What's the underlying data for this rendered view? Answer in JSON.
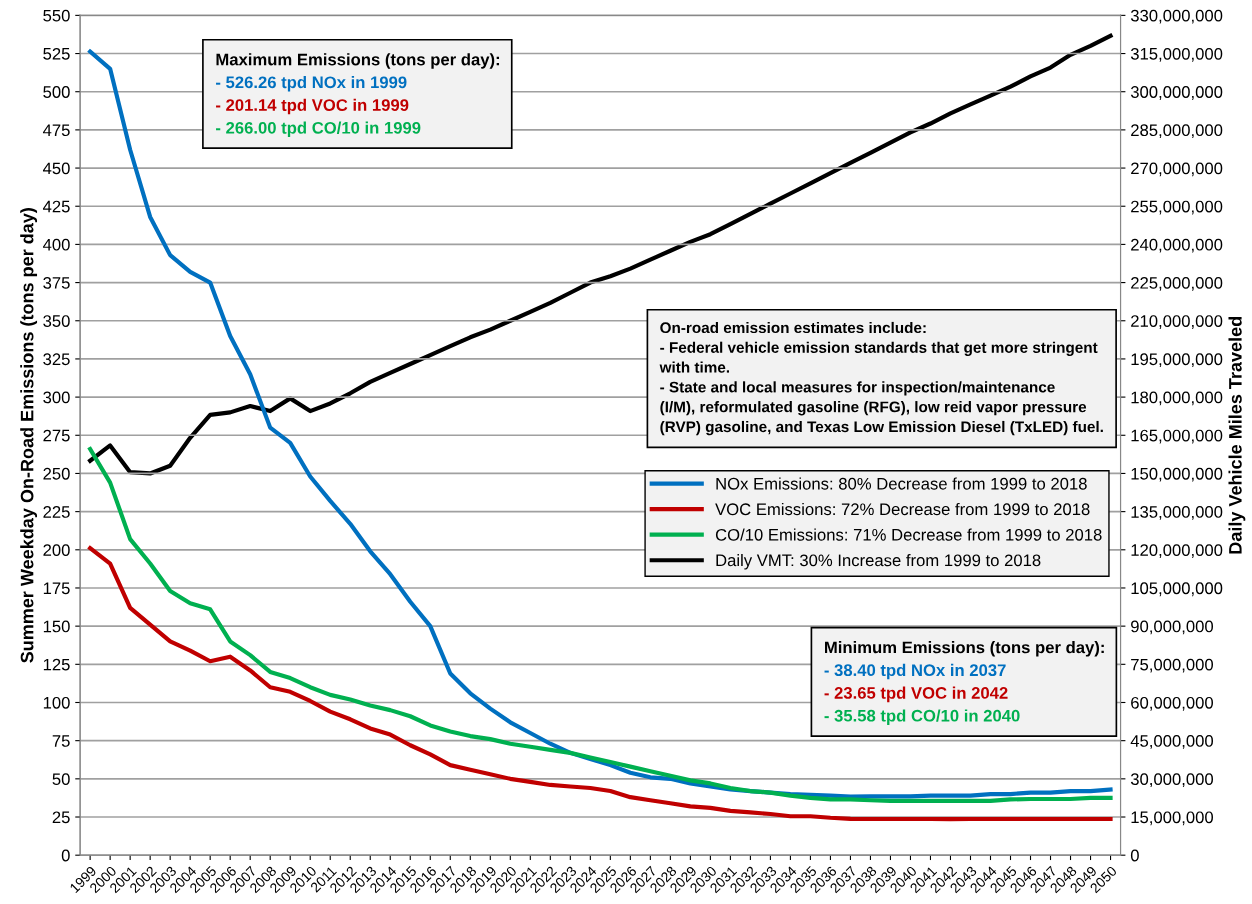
{
  "chart_data": {
    "type": "line",
    "categories": [
      "1999",
      "2000",
      "2001",
      "2002",
      "2003",
      "2004",
      "2005",
      "2006",
      "2007",
      "2008",
      "2009",
      "2010",
      "2011",
      "2012",
      "2013",
      "2014",
      "2015",
      "2016",
      "2017",
      "2018",
      "2019",
      "2020",
      "2021",
      "2022",
      "2023",
      "2024",
      "2025",
      "2026",
      "2027",
      "2028",
      "2029",
      "2030",
      "2031",
      "2032",
      "2033",
      "2034",
      "2035",
      "2036",
      "2037",
      "2038",
      "2039",
      "2040",
      "2041",
      "2042",
      "2043",
      "2044",
      "2045",
      "2046",
      "2047",
      "2048",
      "2049",
      "2050"
    ],
    "ylabel": "Summer Weekday On-Road Emissions (tons per day)",
    "y2label": "Daily Vehicle Miles Traveled",
    "series": [
      {
        "name": "NOx Emissions: 80% Decrease from 1999 to 2018",
        "color": "#0070c0",
        "values": [
          526.26,
          515,
          462,
          418,
          393,
          382,
          375,
          340,
          315,
          280,
          270,
          248,
          232,
          217,
          199,
          184,
          166,
          150,
          119,
          106,
          96,
          87,
          80,
          73,
          67,
          63,
          59,
          54,
          51,
          50,
          47,
          45,
          43,
          42,
          41,
          40,
          39.5,
          39,
          38.4,
          38.5,
          38.5,
          38.5,
          39,
          39,
          39,
          40,
          40,
          41,
          41,
          42,
          42,
          43
        ]
      },
      {
        "name": "VOC Emissions: 72% Decrease from 1999 to 2018",
        "color": "#c00000",
        "values": [
          201.14,
          191,
          162,
          151,
          140,
          134,
          127,
          130,
          121,
          110,
          107,
          101,
          94,
          89,
          83,
          79,
          72,
          66,
          59,
          56,
          53,
          50,
          48,
          46,
          45,
          44,
          42,
          38,
          36,
          34,
          32,
          31,
          29,
          28,
          27,
          25.5,
          25.5,
          24.5,
          23.8,
          23.7,
          23.7,
          23.7,
          23.7,
          23.65,
          23.7,
          23.7,
          23.7,
          23.7,
          23.7,
          23.7,
          23.7,
          23.7
        ]
      },
      {
        "name": "CO/10 Emissions: 71% Decrease from 1999 to 2018",
        "color": "#00b050",
        "values": [
          266.0,
          244,
          207,
          191,
          173,
          165,
          161,
          140,
          131,
          120,
          116,
          110,
          105,
          102,
          98,
          95,
          91,
          85,
          81,
          78,
          76,
          73,
          71,
          69,
          67,
          64,
          61,
          58,
          55,
          52,
          49,
          47,
          44,
          42,
          41,
          39,
          37.5,
          36.5,
          36.5,
          36,
          35.6,
          35.58,
          35.6,
          35.6,
          35.6,
          35.6,
          36.5,
          36.8,
          36.8,
          36.8,
          37.5,
          37.5
        ]
      },
      {
        "name": "Daily VMT: 30% Increase from 1999 to 2018",
        "color": "#000000",
        "axis": "y2",
        "values": [
          155000000,
          161000000,
          150500000,
          150000000,
          153000000,
          164000000,
          173000000,
          174000000,
          176500000,
          174500000,
          179500000,
          174500000,
          177500000,
          181500000,
          186000000,
          189500000,
          193000000,
          196500000,
          200000000,
          203500000,
          206500000,
          210000000,
          213500000,
          217000000,
          221000000,
          225000000,
          227500000,
          230500000,
          234000000,
          237500000,
          241000000,
          244000000,
          248000000,
          252000000,
          256000000,
          260000000,
          264000000,
          268000000,
          272000000,
          276000000,
          280000000,
          284000000,
          287500000,
          291500000,
          295000000,
          298500000,
          302000000,
          306000000,
          309500000,
          314500000,
          318000000,
          322000000
        ]
      }
    ],
    "ylim": [
      0,
      550
    ],
    "yticks": [
      0,
      25,
      50,
      75,
      100,
      125,
      150,
      175,
      200,
      225,
      250,
      275,
      300,
      325,
      350,
      375,
      400,
      425,
      450,
      475,
      500,
      525,
      550
    ],
    "y2lim": [
      0,
      330000000
    ],
    "y2ticks": [
      {
        "value": 0,
        "label": "0"
      },
      {
        "value": 15000000,
        "label": "15,000,000"
      },
      {
        "value": 30000000,
        "label": "30,000,000"
      },
      {
        "value": 45000000,
        "label": "45,000,000"
      },
      {
        "value": 60000000,
        "label": "60,000,000"
      },
      {
        "value": 75000000,
        "label": "75,000,000"
      },
      {
        "value": 90000000,
        "label": "90,000,000"
      },
      {
        "value": 105000000,
        "label": "105,000,000"
      },
      {
        "value": 120000000,
        "label": "120,000,000"
      },
      {
        "value": 135000000,
        "label": "135,000,000"
      },
      {
        "value": 150000000,
        "label": "150,000,000"
      },
      {
        "value": 165000000,
        "label": "165,000,000"
      },
      {
        "value": 180000000,
        "label": "180,000,000"
      },
      {
        "value": 195000000,
        "label": "195,000,000"
      },
      {
        "value": 210000000,
        "label": "210,000,000"
      },
      {
        "value": 225000000,
        "label": "225,000,000"
      },
      {
        "value": 240000000,
        "label": "240,000,000"
      },
      {
        "value": 255000000,
        "label": "255,000,000"
      },
      {
        "value": 270000000,
        "label": "270,000,000"
      },
      {
        "value": 285000000,
        "label": "285,000,000"
      },
      {
        "value": 300000000,
        "label": "300,000,000"
      },
      {
        "value": 315000000,
        "label": "315,000,000"
      },
      {
        "value": 330000000,
        "label": "330,000,000"
      }
    ],
    "grid": "y",
    "legend": "right",
    "marker": "none",
    "line_style": "solid",
    "annotations": [
      "Maximum Emissions (tons per day):\n- 526.26 tpd NOx in 1999\n- 201.14 tpd VOC in 1999\n- 266.00 tpd CO/10 in 1999",
      "On-road emission estimates include:\n- Federal vehicle emission standards that get more stringent\nwith time.\n- State and local measures for inspection/maintenance\n(I/M), reformulated gasoline (RFG), low reid vapor pressure\n(RVP) gasoline, and Texas Low Emission Diesel (TxLED) fuel.",
      "Minimum Emissions (tons per day):\n- 38.40 tpd NOx in 2037\n- 23.65 tpd VOC in 2042\n- 35.58 tpd CO/10 in 2040"
    ]
  }
}
